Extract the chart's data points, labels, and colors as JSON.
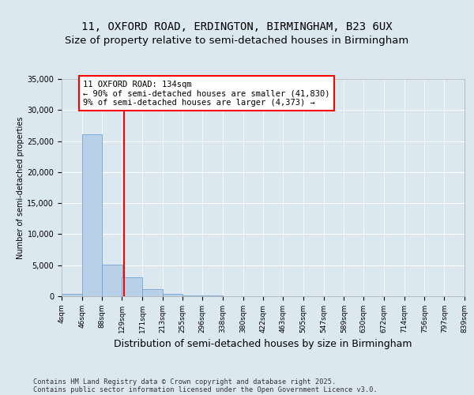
{
  "title": "11, OXFORD ROAD, ERDINGTON, BIRMINGHAM, B23 6UX",
  "subtitle": "Size of property relative to semi-detached houses in Birmingham",
  "xlabel": "Distribution of semi-detached houses by size in Birmingham",
  "ylabel": "Number of semi-detached properties",
  "bin_labels": [
    "4sqm",
    "46sqm",
    "88sqm",
    "129sqm",
    "171sqm",
    "213sqm",
    "255sqm",
    "296sqm",
    "338sqm",
    "380sqm",
    "422sqm",
    "463sqm",
    "505sqm",
    "547sqm",
    "589sqm",
    "630sqm",
    "672sqm",
    "714sqm",
    "756sqm",
    "797sqm",
    "839sqm"
  ],
  "bin_edges": [
    4,
    46,
    88,
    129,
    171,
    213,
    255,
    296,
    338,
    380,
    422,
    463,
    505,
    547,
    589,
    630,
    672,
    714,
    756,
    797,
    839
  ],
  "bar_heights": [
    380,
    26100,
    5050,
    3000,
    1100,
    400,
    190,
    70,
    25,
    10,
    5,
    2,
    1,
    0,
    0,
    0,
    0,
    0,
    0,
    0
  ],
  "bar_color": "#b8d0e8",
  "bar_edge_color": "#6699cc",
  "property_line_x": 134,
  "property_line_color": "red",
  "annotation_line1": "11 OXFORD ROAD: 134sqm",
  "annotation_line2": "← 90% of semi-detached houses are smaller (41,830)",
  "annotation_line3": "9% of semi-detached houses are larger (4,373) →",
  "ylim": [
    0,
    35000
  ],
  "yticks": [
    0,
    5000,
    10000,
    15000,
    20000,
    25000,
    30000,
    35000
  ],
  "background_color": "#dce8f0",
  "plot_bg_color": "#dce8f0",
  "footer_line1": "Contains HM Land Registry data © Crown copyright and database right 2025.",
  "footer_line2": "Contains public sector information licensed under the Open Government Licence v3.0.",
  "title_fontsize": 10,
  "subtitle_fontsize": 9.5
}
